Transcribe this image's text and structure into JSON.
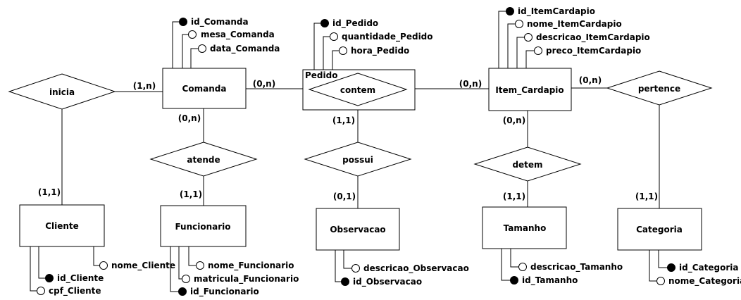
{
  "entities": {
    "comanda": "Comanda",
    "item_cardapio": "Item_Cardapio",
    "cliente": "Cliente",
    "funcionario": "Funcionario",
    "observacao": "Observacao",
    "tamanho": "Tamanho",
    "categoria": "Categoria"
  },
  "associative_entity": "Pedido",
  "relationships": {
    "inicia": "inicia",
    "atende": "atende",
    "contem": "contem",
    "possui": "possui",
    "detem": "detem",
    "pertence": "pertence"
  },
  "cardinalities": {
    "inicia_comanda": "(1,n)",
    "comanda_atende": "(0,n)",
    "comanda_contem": "(0,n)",
    "contem_item": "(0,n)",
    "item_pertence": "(0,n)",
    "pedido_possui": "(1,1)",
    "item_detem": "(0,n)",
    "cliente": "(1,1)",
    "funcionario": "(1,1)",
    "observacao": "(0,1)",
    "tamanho": "(1,1)",
    "categoria": "(1,1)"
  },
  "attributes": {
    "comanda": [
      {
        "label": "id_Comanda",
        "key": true
      },
      {
        "label": "mesa_Comanda",
        "key": false
      },
      {
        "label": "data_Comanda",
        "key": false
      }
    ],
    "pedido": [
      {
        "label": "id_Pedido",
        "key": true
      },
      {
        "label": "quantidade_Pedido",
        "key": false
      },
      {
        "label": "hora_Pedido",
        "key": false
      }
    ],
    "item_cardapio": [
      {
        "label": "id_ItemCardapio",
        "key": true
      },
      {
        "label": "nome_ItemCardapio",
        "key": false
      },
      {
        "label": "descricao_ItemCardapio",
        "key": false
      },
      {
        "label": "preco_ItemCardapio",
        "key": false
      }
    ],
    "cliente": [
      {
        "label": "nome_Cliente",
        "key": false
      },
      {
        "label": "id_Cliente",
        "key": true
      },
      {
        "label": "cpf_Cliente",
        "key": false
      }
    ],
    "funcionario": [
      {
        "label": "nome_Funcionario",
        "key": false
      },
      {
        "label": "matricula_Funcionario",
        "key": false
      },
      {
        "label": "id_Funcionario",
        "key": true
      }
    ],
    "observacao": [
      {
        "label": "descricao_Observacao",
        "key": false
      },
      {
        "label": "id_Observacao",
        "key": true
      }
    ],
    "tamanho": [
      {
        "label": "descricao_Tamanho",
        "key": false
      },
      {
        "label": "id_Tamanho",
        "key": true
      }
    ],
    "categoria": [
      {
        "label": "id_Categoria",
        "key": true
      },
      {
        "label": "nome_Categoria",
        "key": false
      }
    ]
  }
}
